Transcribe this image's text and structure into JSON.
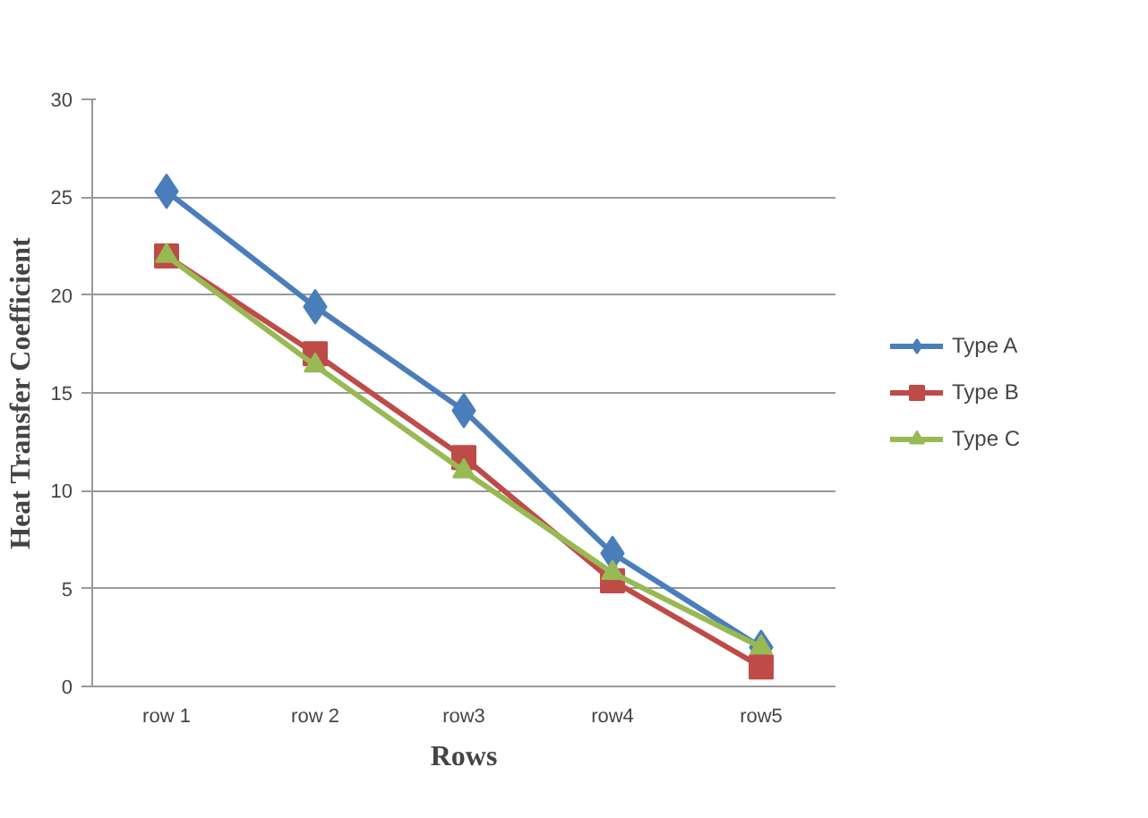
{
  "chart_data": {
    "type": "line",
    "xlabel": "Rows",
    "ylabel": "Heat Transfer Coefficient",
    "categories": [
      "row 1",
      "row 2",
      "row3",
      "row4",
      "row5"
    ],
    "series": [
      {
        "name": "Type A",
        "color": "#4a7ebb",
        "marker": "diamond",
        "values": [
          25.3,
          19.4,
          14.1,
          6.8,
          2.0
        ]
      },
      {
        "name": "Type B",
        "color": "#be4b48",
        "marker": "square",
        "values": [
          22.0,
          17.0,
          11.7,
          5.4,
          1.0
        ]
      },
      {
        "name": "Type C",
        "color": "#98b954",
        "marker": "triangle",
        "values": [
          22.0,
          16.4,
          11.0,
          5.8,
          2.0
        ]
      }
    ],
    "ylim": [
      0,
      30
    ],
    "yticks": [
      0,
      5,
      10,
      15,
      20,
      25,
      30
    ],
    "grid": "y",
    "legend": "right",
    "line_style": "solid"
  }
}
